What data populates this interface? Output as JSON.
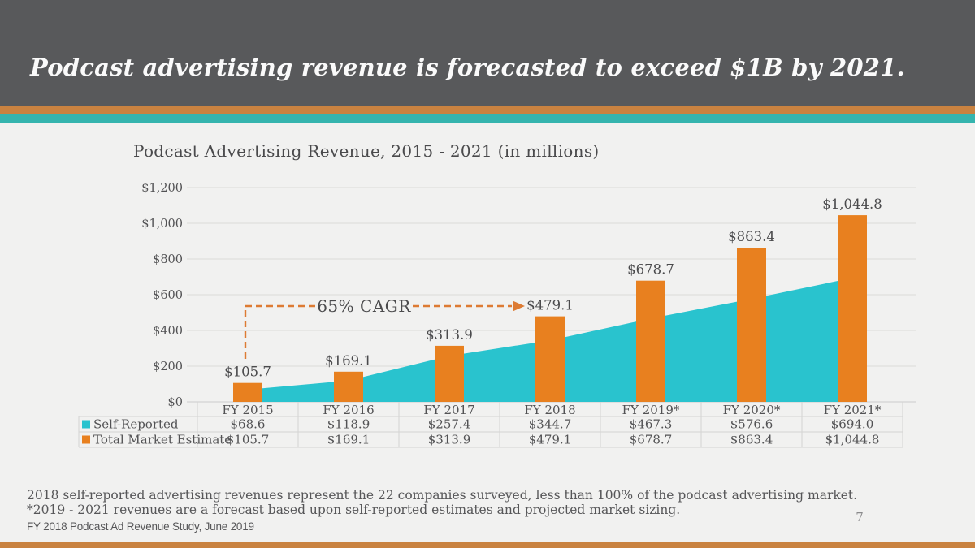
{
  "slide": {
    "title": "Podcast advertising revenue is forecasted to exceed $1B by 2021.",
    "page_number": "7",
    "footnotes": [
      "2018 self-reported advertising revenues represent the 22 companies surveyed, less than 100% of the podcast advertising market.",
      "*2019 - 2021 revenues are a forecast based upon self-reported estimates and projected market sizing."
    ],
    "source": "FY 2018 Podcast Ad Revenue Study, June 2019"
  },
  "colors": {
    "header_bg": "#58595B",
    "accent_orange": "#C98240",
    "accent_teal": "#35B4AE",
    "content_bg": "#F1F1F0",
    "bar_orange": "#E8801F",
    "area_teal": "#29C3CE",
    "text_gray": "#525254",
    "grid": "#DFDFDD",
    "table_border": "#D4D4D2",
    "annotation_orange": "#DD7B33"
  },
  "chart_data": {
    "type": "combo-area-bar",
    "title": "Podcast Advertising Revenue, 2015 - 2021 (in millions)",
    "categories": [
      "FY 2015",
      "FY 2016",
      "FY 2017",
      "FY 2018",
      "FY 2019*",
      "FY 2020*",
      "FY 2021*"
    ],
    "series": [
      {
        "name": "Self-Reported",
        "type": "area",
        "color": "#29C3CE",
        "values": [
          68.6,
          118.9,
          257.4,
          344.7,
          467.3,
          576.6,
          694.0
        ]
      },
      {
        "name": "Total Market Estimate",
        "type": "bar",
        "color": "#E8801F",
        "values": [
          105.7,
          169.1,
          313.9,
          479.1,
          678.7,
          863.4,
          1044.8
        ]
      }
    ],
    "bar_labels": [
      "$105.7",
      "$169.1",
      "$313.9",
      "$479.1",
      "$678.7",
      "$863.4",
      "$1,044.8"
    ],
    "table_values": [
      [
        "$68.6",
        "$118.9",
        "$257.4",
        "$344.7",
        "$467.3",
        "$576.6",
        "$694.0"
      ],
      [
        "$105.7",
        "$169.1",
        "$313.9",
        "$479.1",
        "$678.7",
        "$863.4",
        "$1,044.8"
      ]
    ],
    "y_ticks": [
      "$1,200",
      "$1,000",
      "$800",
      "$600",
      "$400",
      "$200",
      "$0"
    ],
    "ylim": [
      0,
      1200
    ],
    "y_step": 200,
    "annotation": "65% CAGR",
    "grid": true,
    "legend_position": "table-left"
  }
}
